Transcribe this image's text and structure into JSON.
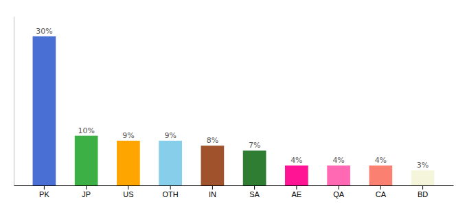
{
  "chart_data": {
    "type": "bar",
    "categories": [
      "PK",
      "JP",
      "US",
      "OTH",
      "IN",
      "SA",
      "AE",
      "QA",
      "CA",
      "BD"
    ],
    "values": [
      30,
      10,
      9,
      9,
      8,
      7,
      4,
      4,
      4,
      3
    ],
    "colors": [
      "#4A6FD4",
      "#3CB044",
      "#FFA500",
      "#87CEEB",
      "#A0522D",
      "#2E7D32",
      "#FF1493",
      "#FF69B4",
      "#FA8072",
      "#F5F5DC"
    ],
    "ylim": [
      0,
      34
    ],
    "data_labels": true,
    "value_labels": [
      "30%",
      "10%",
      "9%",
      "9%",
      "8%",
      "7%",
      "4%",
      "4%",
      "4%",
      "3%"
    ],
    "tick_labels": "x"
  }
}
